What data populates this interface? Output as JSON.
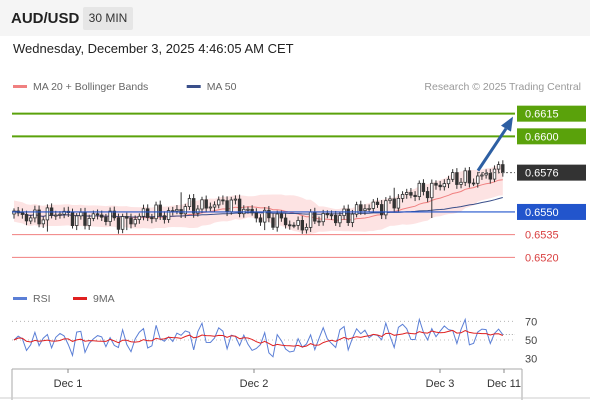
{
  "header": {
    "pair": "AUD/USD",
    "timeframe": "30 MIN",
    "datetime": "Wednesday, December 3, 2025 4:46:05 AM CET"
  },
  "colors": {
    "green": "#5aa20b",
    "blue": "#2255cc",
    "red": "#f07f7f",
    "dark": "#333333",
    "arrow": "#2d5fa3",
    "ma20": "#f08080",
    "ma50": "#3a4f8a",
    "band": "#fcd9d9",
    "rsi": "#5b7fd6",
    "rsi_ma": "#e02020"
  },
  "chart_data": [
    {
      "type": "candlestick",
      "legend": [
        {
          "name": "MA 20 + Bollinger Bands",
          "color": "#f08080"
        },
        {
          "name": "MA 50",
          "color": "#3a4f8a"
        }
      ],
      "source": "Research © 2025 Trading Central",
      "levels": [
        {
          "value": 0.6615,
          "label": "0.6615",
          "style": "green"
        },
        {
          "value": 0.66,
          "label": "0.6600",
          "style": "green"
        },
        {
          "value": 0.6576,
          "label": "0.6576",
          "style": "last"
        },
        {
          "value": 0.655,
          "label": "0.6550",
          "style": "blue"
        },
        {
          "value": 0.6535,
          "label": "0.6535",
          "style": "red"
        },
        {
          "value": 0.652,
          "label": "0.6520",
          "style": "red"
        }
      ],
      "ylim": [
        0.6505,
        0.6628
      ],
      "last_close": 0.6576,
      "arrow_target": 0.6615,
      "x_ticks": [
        "Dec 1",
        "Dec 2",
        "Dec 3",
        "Dec 11"
      ]
    },
    {
      "type": "line",
      "legend": [
        {
          "name": "RSI",
          "color": "#5b7fd6"
        },
        {
          "name": "9MA",
          "color": "#e02020"
        }
      ],
      "ylim": [
        20,
        80
      ],
      "y_ticks": [
        {
          "value": 70,
          "label": "70"
        },
        {
          "value": 50,
          "label": "50"
        },
        {
          "value": 30,
          "label": "30"
        }
      ]
    }
  ]
}
